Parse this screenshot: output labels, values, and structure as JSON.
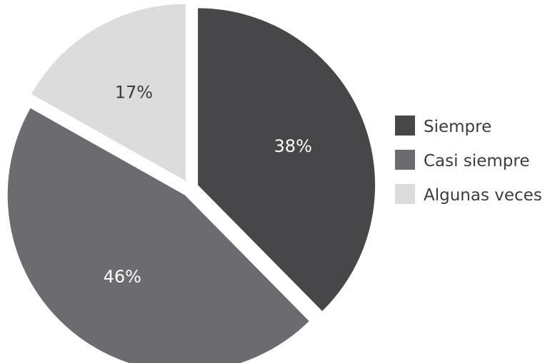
{
  "chart_data": {
    "type": "pie",
    "slices": [
      {
        "label": "Siempre",
        "value": 38,
        "display": "38%",
        "color": "#47474a"
      },
      {
        "label": "Casi siempre",
        "value": 46,
        "display": "46%",
        "color": "#6c6c70"
      },
      {
        "label": "Algunas veces",
        "value": 17,
        "display": "17%",
        "color": "#dcdcdd"
      }
    ],
    "legend_position": "right",
    "exploded": true
  }
}
